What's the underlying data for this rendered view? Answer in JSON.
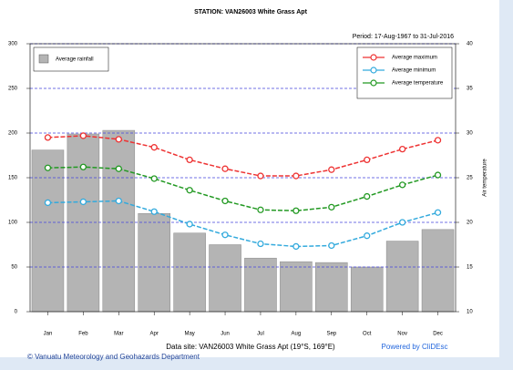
{
  "chart_data": {
    "type": "combo",
    "title": "STATION:  VAN26003 White Grass  Apt",
    "subtitle": "Period:  17-Aug-1967  to  31-Jul-2016",
    "y2label": "Air temperature",
    "footer": "Data site: VAN26003 White Grass  Apt (19°S, 169°E)",
    "credit": "Powered by CliDEsc",
    "copyright": "© Vanuatu Meteorology and Geohazards Department",
    "categories": [
      "Jan",
      "Feb",
      "Mar",
      "Apr",
      "May",
      "Jun",
      "Jul",
      "Aug",
      "Sep",
      "Oct",
      "Nov",
      "Dec"
    ],
    "series": [
      {
        "name": "Average rainfall",
        "type": "bar",
        "color": "#b4b4b4",
        "values": [
          181,
          199,
          203,
          110,
          88,
          75,
          60,
          56,
          55,
          50,
          79,
          92
        ]
      },
      {
        "name": "Average maximum",
        "type": "line",
        "axis": "y2",
        "color": "#ee3333",
        "values": [
          29.5,
          29.7,
          29.3,
          28.4,
          27.0,
          26.0,
          25.2,
          25.2,
          25.9,
          27.0,
          28.2,
          29.2
        ]
      },
      {
        "name": "Average minimum",
        "type": "line",
        "axis": "y2",
        "color": "#33aadd",
        "values": [
          22.2,
          22.3,
          22.4,
          21.2,
          19.8,
          18.6,
          17.6,
          17.3,
          17.4,
          18.5,
          20.0,
          21.1
        ]
      },
      {
        "name": "Average temperature",
        "type": "line",
        "axis": "y2",
        "color": "#229922",
        "values": [
          26.1,
          26.2,
          26.0,
          24.9,
          23.6,
          22.4,
          21.4,
          21.3,
          21.7,
          22.9,
          24.2,
          25.3
        ]
      }
    ],
    "ylim": [
      0,
      300
    ],
    "yticks": [
      0,
      50,
      100,
      150,
      200,
      250,
      300
    ],
    "y2lim": [
      10,
      40
    ],
    "y2ticks": [
      10,
      15,
      20,
      25,
      30,
      35,
      40
    ],
    "grid": true,
    "grid_color": "#4444dd"
  }
}
